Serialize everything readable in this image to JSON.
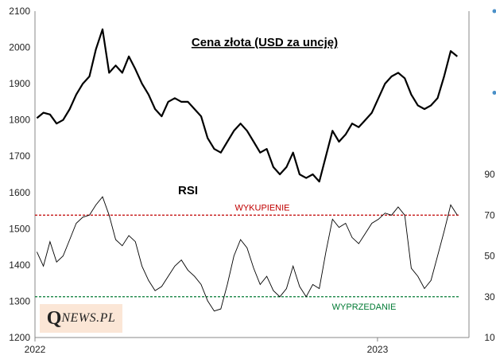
{
  "chart_data": {
    "type": "line",
    "title": "Cena złota (USD za uncję)",
    "x_ticks": [
      "2022",
      "2023"
    ],
    "left_axis": {
      "ticks": [
        1200,
        1300,
        1400,
        1500,
        1600,
        1700,
        1800,
        1900,
        2000,
        2100
      ],
      "ylim": [
        1200,
        2100
      ]
    },
    "right_axis": {
      "ticks": [
        10,
        30,
        50,
        70,
        90
      ],
      "ylim": [
        10,
        170
      ]
    },
    "series": [
      {
        "name": "",
        "axis": "left",
        "x": [
          "2022-01-03",
          "2022-01-10",
          "2022-01-17",
          "2022-01-24",
          "2022-01-31",
          "2022-02-07",
          "2022-02-14",
          "2022-02-21",
          "2022-02-28",
          "2022-03-07",
          "2022-03-14",
          "2022-03-21",
          "2022-03-28",
          "2022-04-04",
          "2022-04-11",
          "2022-04-18",
          "2022-04-25",
          "2022-05-02",
          "2022-05-09",
          "2022-05-16",
          "2022-05-23",
          "2022-05-30",
          "2022-06-06",
          "2022-06-13",
          "2022-06-20",
          "2022-06-27",
          "2022-07-04",
          "2022-07-11",
          "2022-07-18",
          "2022-07-25",
          "2022-08-01",
          "2022-08-08",
          "2022-08-15",
          "2022-08-22",
          "2022-08-29",
          "2022-09-05",
          "2022-09-12",
          "2022-09-19",
          "2022-09-26",
          "2022-10-03",
          "2022-10-10",
          "2022-10-17",
          "2022-10-24",
          "2022-10-31",
          "2022-11-07",
          "2022-11-14",
          "2022-11-21",
          "2022-11-28",
          "2022-12-05",
          "2022-12-12",
          "2022-12-19",
          "2022-12-26",
          "2023-01-02",
          "2023-01-09",
          "2023-01-16",
          "2023-01-23",
          "2023-01-30",
          "2023-02-06",
          "2023-02-13",
          "2023-02-20",
          "2023-02-27",
          "2023-03-06",
          "2023-03-13",
          "2023-03-20",
          "2023-03-27"
        ],
        "values": [
          1805,
          1820,
          1815,
          1790,
          1800,
          1830,
          1870,
          1900,
          1920,
          1995,
          2050,
          1930,
          1950,
          1930,
          1975,
          1940,
          1900,
          1870,
          1830,
          1810,
          1850,
          1860,
          1850,
          1850,
          1830,
          1810,
          1750,
          1720,
          1710,
          1740,
          1770,
          1790,
          1770,
          1740,
          1710,
          1720,
          1670,
          1650,
          1670,
          1710,
          1650,
          1640,
          1650,
          1630,
          1700,
          1770,
          1740,
          1760,
          1790,
          1780,
          1800,
          1820,
          1860,
          1900,
          1920,
          1930,
          1915,
          1870,
          1840,
          1830,
          1840,
          1860,
          1920,
          1990,
          1975
        ]
      },
      {
        "name": "",
        "axis": "right",
        "x": [
          "2022-01-03",
          "2022-01-10",
          "2022-01-17",
          "2022-01-24",
          "2022-01-31",
          "2022-02-07",
          "2022-02-14",
          "2022-02-21",
          "2022-02-28",
          "2022-03-07",
          "2022-03-14",
          "2022-03-21",
          "2022-03-28",
          "2022-04-04",
          "2022-04-11",
          "2022-04-18",
          "2022-04-25",
          "2022-05-02",
          "2022-05-09",
          "2022-05-16",
          "2022-05-23",
          "2022-05-30",
          "2022-06-06",
          "2022-06-13",
          "2022-06-20",
          "2022-06-27",
          "2022-07-04",
          "2022-07-11",
          "2022-07-18",
          "2022-07-25",
          "2022-08-01",
          "2022-08-08",
          "2022-08-15",
          "2022-08-22",
          "2022-08-29",
          "2022-09-05",
          "2022-09-12",
          "2022-09-19",
          "2022-09-26",
          "2022-10-03",
          "2022-10-10",
          "2022-10-17",
          "2022-10-24",
          "2022-10-31",
          "2022-11-07",
          "2022-11-14",
          "2022-11-21",
          "2022-11-28",
          "2022-12-05",
          "2022-12-12",
          "2022-12-19",
          "2022-12-26",
          "2023-01-02",
          "2023-01-09",
          "2023-01-16",
          "2023-01-23",
          "2023-01-30",
          "2023-02-06",
          "2023-02-13",
          "2023-02-20",
          "2023-02-27",
          "2023-03-06",
          "2023-03-13",
          "2023-03-20",
          "2023-03-27"
        ],
        "values": [
          52,
          45,
          57,
          47,
          50,
          58,
          66,
          69,
          70,
          75,
          79,
          70,
          58,
          55,
          60,
          57,
          45,
          38,
          33,
          35,
          40,
          45,
          48,
          43,
          40,
          36,
          28,
          23,
          24,
          36,
          50,
          58,
          54,
          44,
          36,
          40,
          33,
          30,
          34,
          45,
          35,
          30,
          36,
          34,
          52,
          68,
          64,
          66,
          59,
          56,
          61,
          66,
          68,
          71,
          70,
          74,
          70,
          44,
          40,
          34,
          38,
          50,
          62,
          75,
          70
        ]
      }
    ],
    "levels": [
      {
        "label": "WYKUPIENIE",
        "value": 70,
        "color": "#c00000"
      },
      {
        "label": "WYPRZEDANIE",
        "value": 30,
        "color": "#007a33"
      }
    ],
    "annotations": {
      "rsi": "RSI"
    },
    "colors": {
      "price": "#000000",
      "rsi": "#000000",
      "tick_dot": "#4a90c8"
    },
    "grid": false,
    "logo": {
      "q": "Q",
      "rest": "NEWS.PL"
    }
  }
}
